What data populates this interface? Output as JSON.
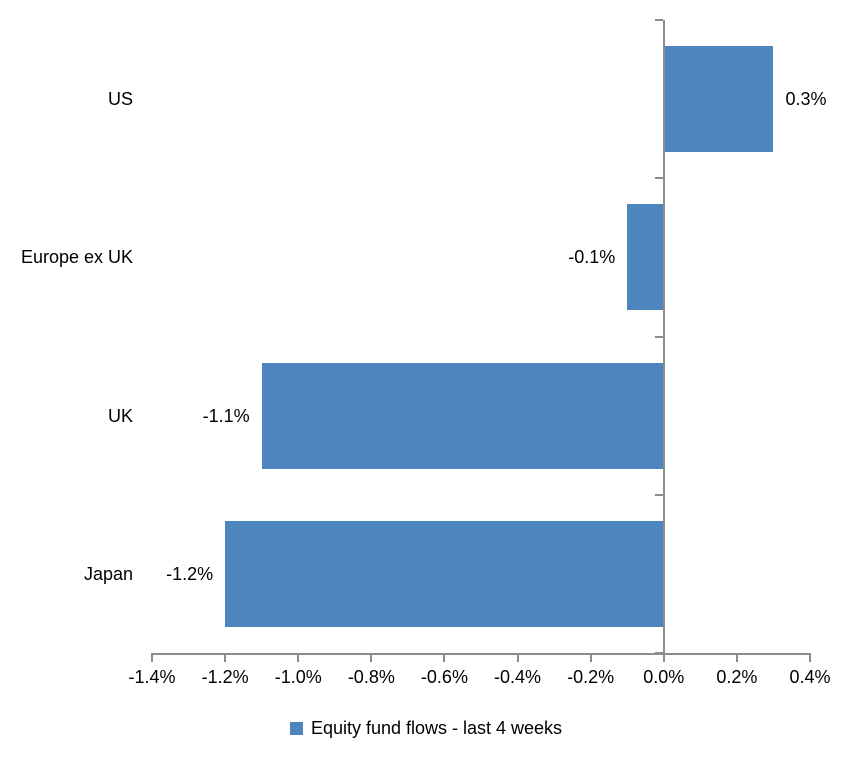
{
  "chart_data": {
    "type": "bar",
    "orientation": "horizontal",
    "categories": [
      "US",
      "Europe ex UK",
      "UK",
      "Japan"
    ],
    "values": [
      0.3,
      -0.1,
      -1.1,
      -1.2
    ],
    "value_labels": [
      "0.3%",
      "-0.1%",
      "-1.1%",
      "-1.2%"
    ],
    "title": "",
    "xlabel": "",
    "ylabel": "",
    "xlim": [
      -1.4,
      0.4
    ],
    "x_ticks": [
      -1.4,
      -1.2,
      -1.0,
      -0.8,
      -0.6,
      -0.4,
      -0.2,
      0.0,
      0.2,
      0.4
    ],
    "x_tick_labels": [
      "-1.4%",
      "-1.2%",
      "-1.0%",
      "-0.8%",
      "-0.6%",
      "-0.4%",
      "-0.2%",
      "0.0%",
      "0.2%",
      "0.4%"
    ],
    "grid": false,
    "legend_position": "bottom-center",
    "bar_color": "#4D86BE",
    "axis_color": "#8C8C8C",
    "text_color": "#000000",
    "legend": {
      "swatch_color": "#4D86BE",
      "label": "Equity fund flows - last 4 weeks"
    }
  }
}
